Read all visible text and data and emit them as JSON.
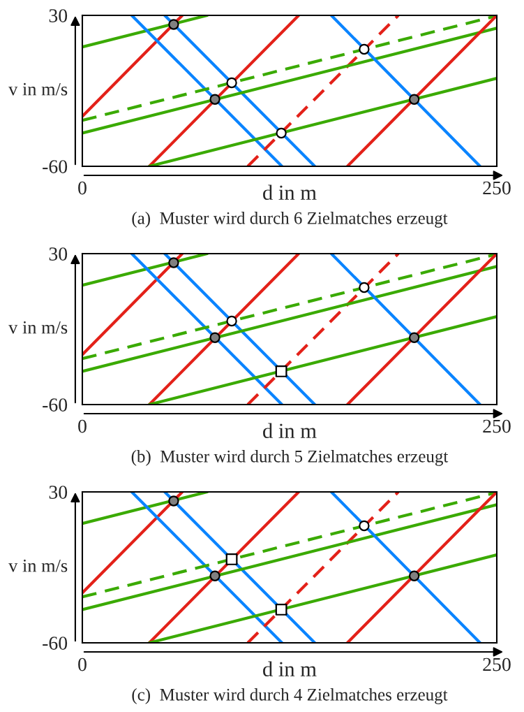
{
  "chart_data": [
    {
      "type": "line",
      "title": "(a)  Muster wird durch 6 Zielmatches erzeugt",
      "xlabel": "d in m",
      "ylabel": "v in m/s",
      "xlim": [
        0,
        250
      ],
      "ylim": [
        -60,
        30
      ],
      "xticks": [
        0,
        250
      ],
      "yticks": [
        -60,
        30
      ],
      "series": [
        {
          "color": "#3aaa00",
          "line_style": "solid",
          "x": [
            0,
            75.3
          ],
          "values": [
            11.2,
            30
          ]
        },
        {
          "color": "#e32119",
          "line_style": "solid",
          "x": [
            0,
            60.3
          ],
          "values": [
            -30.2,
            30
          ]
        },
        {
          "color": "#0a84ff",
          "line_style": "solid",
          "x": [
            29.8,
            120.4
          ],
          "values": [
            30,
            -60
          ]
        },
        {
          "color": "#0a84ff",
          "line_style": "solid",
          "x": [
            49.7,
            140.2
          ],
          "values": [
            30,
            -60
          ]
        },
        {
          "color": "#e32119",
          "line_style": "solid",
          "x": [
            40.4,
            130.5
          ],
          "values": [
            -60,
            30
          ]
        },
        {
          "color": "#3aaa00",
          "line_style": "solid",
          "x": [
            40.4,
            250
          ],
          "values": [
            -60,
            -7.5
          ]
        },
        {
          "color": "#e32119",
          "line_style": "dashed",
          "x": [
            99.8,
            190.6
          ],
          "values": [
            -60,
            30
          ]
        },
        {
          "color": "#3aaa00",
          "line_style": "dashed",
          "x": [
            0,
            250
          ],
          "values": [
            -32.6,
            29.7
          ]
        },
        {
          "color": "#3aaa00",
          "line_style": "solid",
          "x": [
            0,
            250
          ],
          "values": [
            -40.2,
            22.4
          ]
        },
        {
          "color": "#0a84ff",
          "line_style": "solid",
          "x": [
            150.2,
            239.9
          ],
          "values": [
            30,
            -60
          ]
        },
        {
          "color": "#e32119",
          "line_style": "solid",
          "x": [
            159.9,
            250
          ],
          "values": [
            -60,
            30
          ]
        },
        {
          "type": "scatter",
          "marker": "circle",
          "color": "#808080",
          "x": [
            55.1,
            80,
            200.2
          ],
          "values": [
            24.6,
            -20.1,
            -20.1
          ]
        },
        {
          "type": "scatter",
          "marker": "circle",
          "color": "#ffffff",
          "x": [
            90.1,
            120,
            170
          ],
          "values": [
            -10.2,
            -40.2,
            9.8
          ]
        }
      ]
    },
    {
      "type": "line",
      "title": "(b)  Muster wird durch 5 Zielmatches erzeugt",
      "xlabel": "d in m",
      "ylabel": "v in m/s",
      "xlim": [
        0,
        250
      ],
      "ylim": [
        -60,
        30
      ],
      "xticks": [
        0,
        250
      ],
      "yticks": [
        -60,
        30
      ],
      "series": [
        {
          "color": "#3aaa00",
          "line_style": "solid",
          "x": [
            0,
            75.3
          ],
          "values": [
            11.2,
            30
          ]
        },
        {
          "color": "#e32119",
          "line_style": "solid",
          "x": [
            0,
            60.3
          ],
          "values": [
            -30.2,
            30
          ]
        },
        {
          "color": "#0a84ff",
          "line_style": "solid",
          "x": [
            29.8,
            120.4
          ],
          "values": [
            30,
            -60
          ]
        },
        {
          "color": "#0a84ff",
          "line_style": "solid",
          "x": [
            49.7,
            140.2
          ],
          "values": [
            30,
            -60
          ]
        },
        {
          "color": "#e32119",
          "line_style": "solid",
          "x": [
            40.4,
            130.5
          ],
          "values": [
            -60,
            30
          ]
        },
        {
          "color": "#3aaa00",
          "line_style": "solid",
          "x": [
            40.4,
            250
          ],
          "values": [
            -60,
            -7.5
          ]
        },
        {
          "color": "#e32119",
          "line_style": "dashed",
          "x": [
            99.8,
            190.6
          ],
          "values": [
            -60,
            30
          ]
        },
        {
          "color": "#3aaa00",
          "line_style": "dashed",
          "x": [
            0,
            250
          ],
          "values": [
            -32.6,
            29.7
          ]
        },
        {
          "color": "#3aaa00",
          "line_style": "solid",
          "x": [
            0,
            250
          ],
          "values": [
            -40.2,
            22.4
          ]
        },
        {
          "color": "#0a84ff",
          "line_style": "solid",
          "x": [
            150.2,
            239.9
          ],
          "values": [
            30,
            -60
          ]
        },
        {
          "color": "#e32119",
          "line_style": "solid",
          "x": [
            159.9,
            250
          ],
          "values": [
            -60,
            30
          ]
        },
        {
          "type": "scatter",
          "marker": "circle",
          "color": "#808080",
          "x": [
            55.1,
            80,
            200.2
          ],
          "values": [
            24.6,
            -20.1,
            -20.1
          ]
        },
        {
          "type": "scatter",
          "marker": "circle",
          "color": "#ffffff",
          "x": [
            90.1,
            170
          ],
          "values": [
            -10.2,
            9.8
          ]
        },
        {
          "type": "scatter",
          "marker": "square",
          "color": "#ffffff",
          "x": [
            120
          ],
          "values": [
            -40.2
          ]
        }
      ]
    },
    {
      "type": "line",
      "title": "(c)  Muster wird durch 4 Zielmatches erzeugt",
      "xlabel": "d in m",
      "ylabel": "v in m/s",
      "xlim": [
        0,
        250
      ],
      "ylim": [
        -60,
        30
      ],
      "xticks": [
        0,
        250
      ],
      "yticks": [
        -60,
        30
      ],
      "series": [
        {
          "color": "#3aaa00",
          "line_style": "solid",
          "x": [
            0,
            75.3
          ],
          "values": [
            11.2,
            30
          ]
        },
        {
          "color": "#e32119",
          "line_style": "solid",
          "x": [
            0,
            60.3
          ],
          "values": [
            -30.2,
            30
          ]
        },
        {
          "color": "#0a84ff",
          "line_style": "solid",
          "x": [
            29.8,
            120.4
          ],
          "values": [
            30,
            -60
          ]
        },
        {
          "color": "#0a84ff",
          "line_style": "solid",
          "x": [
            49.7,
            140.2
          ],
          "values": [
            30,
            -60
          ]
        },
        {
          "color": "#e32119",
          "line_style": "solid",
          "x": [
            40.4,
            130.5
          ],
          "values": [
            -60,
            30
          ]
        },
        {
          "color": "#3aaa00",
          "line_style": "solid",
          "x": [
            40.4,
            250
          ],
          "values": [
            -60,
            -7.5
          ]
        },
        {
          "color": "#e32119",
          "line_style": "dashed",
          "x": [
            99.8,
            190.6
          ],
          "values": [
            -60,
            30
          ]
        },
        {
          "color": "#3aaa00",
          "line_style": "dashed",
          "x": [
            0,
            250
          ],
          "values": [
            -32.6,
            29.7
          ]
        },
        {
          "color": "#3aaa00",
          "line_style": "solid",
          "x": [
            0,
            250
          ],
          "values": [
            -40.2,
            22.4
          ]
        },
        {
          "color": "#0a84ff",
          "line_style": "solid",
          "x": [
            150.2,
            239.9
          ],
          "values": [
            30,
            -60
          ]
        },
        {
          "color": "#e32119",
          "line_style": "solid",
          "x": [
            159.9,
            250
          ],
          "values": [
            -60,
            30
          ]
        },
        {
          "type": "scatter",
          "marker": "circle",
          "color": "#808080",
          "x": [
            55.1,
            80,
            200.2
          ],
          "values": [
            24.6,
            -20.1,
            -20.1
          ]
        },
        {
          "type": "scatter",
          "marker": "circle",
          "color": "#ffffff",
          "x": [
            170
          ],
          "values": [
            9.8
          ]
        },
        {
          "type": "scatter",
          "marker": "square",
          "color": "#ffffff",
          "x": [
            90.1,
            120
          ],
          "values": [
            -10.2,
            -40.2
          ]
        }
      ]
    }
  ]
}
